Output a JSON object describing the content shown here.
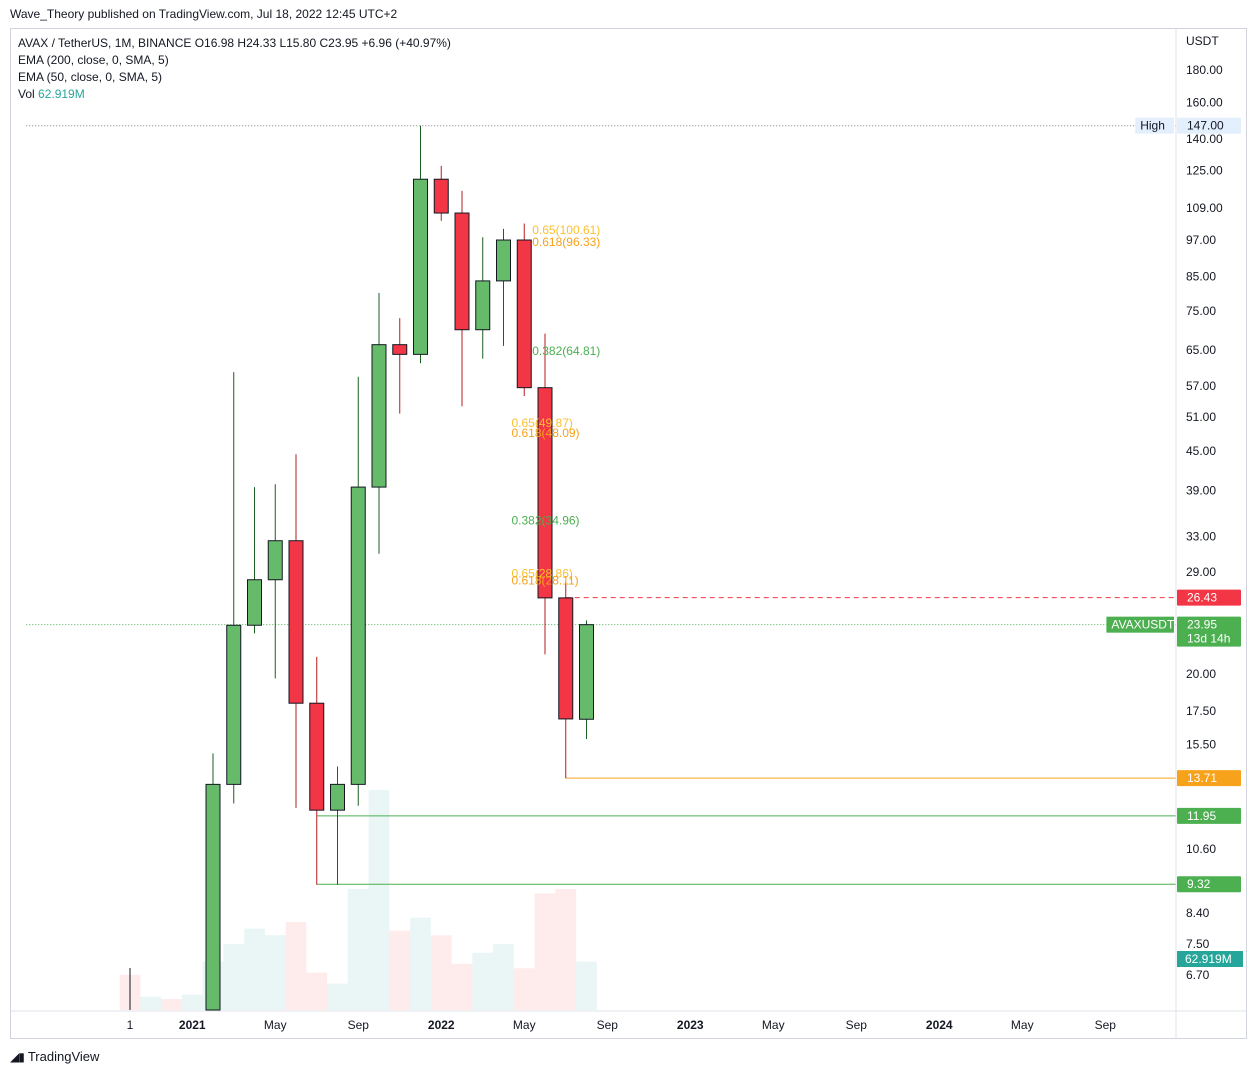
{
  "header": {
    "publisher": "Wave_Theory published on TradingView.com, Jul 18, 2022 12:45 UTC+2"
  },
  "legend": {
    "symbol_line": "AVAX / TetherUS, 1M, BINANCE  O16.98  H24.33  L15.80  C23.95  +6.96 (+40.97%)",
    "ema200": "EMA (200, close, 0, SMA, 5)",
    "ema50": "EMA (50, close, 0, SMA, 5)",
    "vol_label": "Vol",
    "vol_value": "62.919M"
  },
  "brand": {
    "name": "TradingView"
  },
  "colors": {
    "up": "#66bb6a",
    "down": "#f23645",
    "fib_orange": "#f7a21b",
    "fib_yellow": "#fbc02d",
    "fib_green": "#4caf50"
  },
  "chart_data": {
    "type": "candlestick",
    "yscale": "log",
    "ylim": [
      6.4,
      200
    ],
    "currency": "USDT",
    "y_ticks": [
      180,
      160,
      140,
      125,
      109,
      97,
      85,
      75,
      65,
      57,
      51,
      45,
      39,
      33,
      29,
      20,
      17.5,
      15.5,
      10.6,
      8.4,
      7.5,
      6.7
    ],
    "y_tick_labels": [
      "180.00",
      "160.00",
      "140.00",
      "125.00",
      "109.00",
      "97.00",
      "85.00",
      "75.00",
      "65.00",
      "57.00",
      "51.00",
      "45.00",
      "39.00",
      "33.00",
      "29.00",
      "20.00",
      "17.50",
      "15.50",
      "10.60",
      "8.40",
      "7.50",
      "6.70"
    ],
    "x_labels": [
      {
        "label": "1",
        "t": 0,
        "bold": false
      },
      {
        "label": "2021",
        "t": 3,
        "bold": true
      },
      {
        "label": "May",
        "t": 7,
        "bold": false
      },
      {
        "label": "Sep",
        "t": 11,
        "bold": false
      },
      {
        "label": "2022",
        "t": 15,
        "bold": true
      },
      {
        "label": "May",
        "t": 19,
        "bold": false
      },
      {
        "label": "Sep",
        "t": 23,
        "bold": false
      },
      {
        "label": "2023",
        "t": 27,
        "bold": true
      },
      {
        "label": "May",
        "t": 31,
        "bold": false
      },
      {
        "label": "Sep",
        "t": 35,
        "bold": false
      },
      {
        "label": "2024",
        "t": 39,
        "bold": true
      },
      {
        "label": "May",
        "t": 43,
        "bold": false
      },
      {
        "label": "Sep",
        "t": 47,
        "bold": false
      }
    ],
    "candles": [
      {
        "t": 4,
        "o": 4.3,
        "h": 15.0,
        "l": 3.0,
        "c": 13.4
      },
      {
        "t": 5,
        "o": 13.4,
        "h": 60.0,
        "l": 12.5,
        "c": 23.9
      },
      {
        "t": 6,
        "o": 23.9,
        "h": 39.5,
        "l": 23.2,
        "c": 28.2
      },
      {
        "t": 7,
        "o": 28.2,
        "h": 39.9,
        "l": 19.7,
        "c": 32.5
      },
      {
        "t": 8,
        "o": 32.5,
        "h": 44.5,
        "l": 12.3,
        "c": 18.0
      },
      {
        "t": 9,
        "o": 18.0,
        "h": 21.3,
        "l": 9.3,
        "c": 12.2
      },
      {
        "t": 10,
        "o": 12.2,
        "h": 14.3,
        "l": 9.3,
        "c": 13.4
      },
      {
        "t": 11,
        "o": 13.4,
        "h": 59.0,
        "l": 12.4,
        "c": 39.5
      },
      {
        "t": 12,
        "o": 39.5,
        "h": 80.0,
        "l": 31.0,
        "c": 66.3
      },
      {
        "t": 13,
        "o": 66.3,
        "h": 73.0,
        "l": 51.6,
        "c": 64.0
      },
      {
        "t": 14,
        "o": 64.0,
        "h": 147.0,
        "l": 62.0,
        "c": 121.0
      },
      {
        "t": 15,
        "o": 121.0,
        "h": 127.0,
        "l": 104.0,
        "c": 107.0
      },
      {
        "t": 16,
        "o": 107.0,
        "h": 116.0,
        "l": 53.0,
        "c": 70.0
      },
      {
        "t": 17,
        "o": 70.0,
        "h": 98.0,
        "l": 63.0,
        "c": 83.6
      },
      {
        "t": 18,
        "o": 83.6,
        "h": 101.0,
        "l": 66.0,
        "c": 97.0
      },
      {
        "t": 19,
        "o": 97.0,
        "h": 103.0,
        "l": 55.0,
        "c": 56.7
      },
      {
        "t": 20,
        "o": 56.7,
        "h": 69.0,
        "l": 21.5,
        "c": 26.4
      },
      {
        "t": 21,
        "o": 26.4,
        "h": 28.0,
        "l": 13.7,
        "c": 17.0
      },
      {
        "t": 22,
        "o": 16.98,
        "h": 24.33,
        "l": 15.8,
        "c": 23.95
      }
    ],
    "volume": [
      {
        "t": 4,
        "v": 0.22,
        "up": true
      },
      {
        "t": 5,
        "v": 0.3,
        "up": true
      },
      {
        "t": 6,
        "v": 0.37,
        "up": true
      },
      {
        "t": 7,
        "v": 0.34,
        "up": true
      },
      {
        "t": 8,
        "v": 0.4,
        "up": false
      },
      {
        "t": 9,
        "v": 0.17,
        "up": false
      },
      {
        "t": 10,
        "v": 0.12,
        "up": true
      },
      {
        "t": 11,
        "v": 0.55,
        "up": true
      },
      {
        "t": 12,
        "v": 1.0,
        "up": true
      },
      {
        "t": 13,
        "v": 0.36,
        "up": false
      },
      {
        "t": 14,
        "v": 0.42,
        "up": true
      },
      {
        "t": 15,
        "v": 0.34,
        "up": false
      },
      {
        "t": 16,
        "v": 0.21,
        "up": false
      },
      {
        "t": 17,
        "v": 0.26,
        "up": true
      },
      {
        "t": 18,
        "v": 0.3,
        "up": true
      },
      {
        "t": 19,
        "v": 0.19,
        "up": false
      },
      {
        "t": 20,
        "v": 0.53,
        "up": false
      },
      {
        "t": 21,
        "v": 0.55,
        "up": false
      },
      {
        "t": 22,
        "v": 0.22,
        "up": true
      }
    ],
    "volume_pre": [
      {
        "t": 0,
        "v": 0.16,
        "up": false
      },
      {
        "t": 1,
        "v": 0.06,
        "up": true
      },
      {
        "t": 2,
        "v": 0.05,
        "up": false
      },
      {
        "t": 3,
        "v": 0.07,
        "up": true
      }
    ],
    "fibs": [
      {
        "t": 19,
        "value": 100.61,
        "label": "0.65(100.61)",
        "color": "#fbc02d"
      },
      {
        "t": 19,
        "value": 96.33,
        "label": "0.618(96.33)",
        "color": "#f7a21b"
      },
      {
        "t": 19,
        "value": 64.81,
        "label": "0.382(64.81)",
        "color": "#4caf50"
      },
      {
        "t": 18,
        "value": 49.87,
        "label": "0.65(49.87)",
        "color": "#fbc02d"
      },
      {
        "t": 18,
        "value": 48.09,
        "label": "0.618(48.09)",
        "color": "#f7a21b"
      },
      {
        "t": 18,
        "value": 34.96,
        "label": "0.382(34.96)",
        "color": "#4caf50"
      },
      {
        "t": 18,
        "value": 28.86,
        "label": "0.65(28.86)",
        "color": "#fbc02d"
      },
      {
        "t": 18,
        "value": 28.11,
        "label": "0.618(28.11)",
        "color": "#f7a21b"
      }
    ],
    "levels": [
      {
        "value": 147.0,
        "label": "147.00",
        "tag": "High",
        "style": "dotted",
        "color": "#787b86",
        "start_t": -5,
        "badge_bg": "#e3effd",
        "badge_fg": "#131722"
      },
      {
        "value": 26.43,
        "label": "26.43",
        "tag": "",
        "style": "dashed",
        "color": "#f23645",
        "start_t": 21,
        "badge_bg": "#f23645",
        "badge_fg": "#ffffff"
      },
      {
        "value": 23.95,
        "label": "23.95",
        "tag": "AVAXUSDT",
        "sub": "13d 14h",
        "style": "dotted",
        "color": "#4caf50",
        "start_t": -5,
        "badge_bg": "#4caf50",
        "badge_fg": "#ffffff"
      },
      {
        "value": 13.71,
        "label": "13.71",
        "tag": "",
        "style": "solid",
        "color": "#f7a21b",
        "start_t": 21,
        "badge_bg": "#f7a21b",
        "badge_fg": "#ffffff"
      },
      {
        "value": 11.95,
        "label": "11.95",
        "tag": "",
        "style": "solid",
        "color": "#4caf50",
        "start_t": 9,
        "badge_bg": "#4caf50",
        "badge_fg": "#ffffff"
      },
      {
        "value": 9.32,
        "label": "9.32",
        "tag": "",
        "style": "solid",
        "color": "#4caf50",
        "start_t": 9,
        "badge_bg": "#4caf50",
        "badge_fg": "#ffffff"
      }
    ],
    "volume_badge": {
      "label": "62.919M",
      "bg": "#26a69a",
      "fg": "#ffffff"
    }
  }
}
